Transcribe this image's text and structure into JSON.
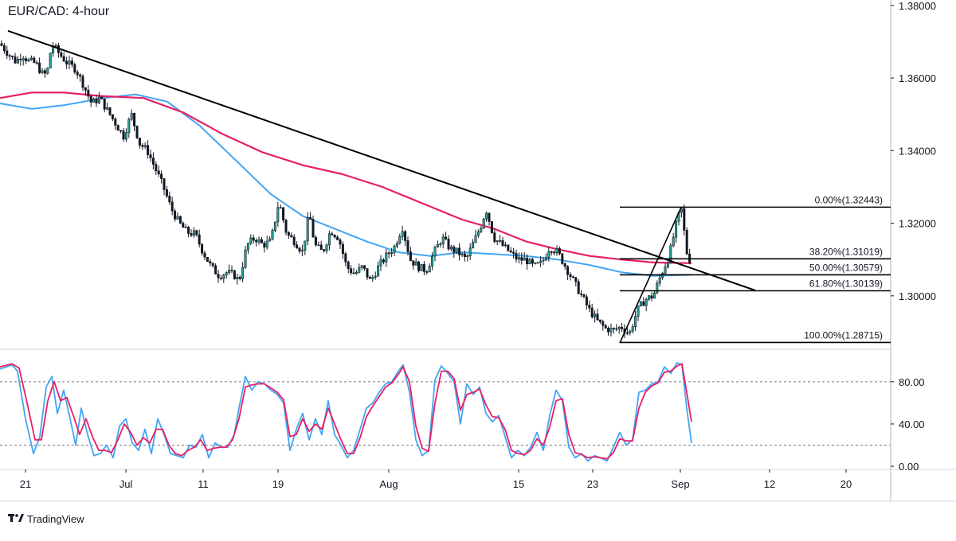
{
  "header": {
    "title": "EUR/CAD: 4-hour"
  },
  "footer": {
    "brand": "TradingView",
    "logo_icon": "tradingview-logo-icon"
  },
  "colors": {
    "candle_up": "#26a69a",
    "candle_down": "#131722",
    "ma_fast": "#42a5f5",
    "ma_slow": "#e91e63",
    "stoch_k": "#42a5f5",
    "stoch_d": "#e91e63",
    "trendline": "#000000",
    "grid": "#e0e3eb",
    "axis_text": "#131722"
  },
  "chart_data": [
    {
      "type": "candlestick",
      "title": "EUR/CAD: 4-hour",
      "ylim": [
        1.2855,
        1.3815
      ],
      "y_ticks": [
        "1.38000",
        "1.36000",
        "1.34000",
        "1.32000",
        "1.30000"
      ],
      "x_tick_labels": [
        "21",
        "Jul",
        "11",
        "19",
        "Aug",
        "15",
        "23",
        "Sep",
        "12",
        "20"
      ],
      "price_path": [
        [
          0,
          1.3695
        ],
        [
          10,
          1.3668
        ],
        [
          20,
          1.3645
        ],
        [
          28,
          1.3665
        ],
        [
          35,
          1.3648
        ],
        [
          45,
          1.364
        ],
        [
          55,
          1.3605
        ],
        [
          60,
          1.3625
        ],
        [
          65,
          1.3695
        ],
        [
          75,
          1.3665
        ],
        [
          85,
          1.364
        ],
        [
          95,
          1.3625
        ],
        [
          105,
          1.358
        ],
        [
          115,
          1.353
        ],
        [
          125,
          1.3545
        ],
        [
          135,
          1.351
        ],
        [
          145,
          1.3475
        ],
        [
          155,
          1.344
        ],
        [
          165,
          1.35
        ],
        [
          175,
          1.342
        ],
        [
          185,
          1.34
        ],
        [
          195,
          1.335
        ],
        [
          205,
          1.33
        ],
        [
          215,
          1.324
        ],
        [
          225,
          1.32
        ],
        [
          235,
          1.3175
        ],
        [
          245,
          1.317
        ],
        [
          255,
          1.312
        ],
        [
          265,
          1.308
        ],
        [
          275,
          1.3055
        ],
        [
          285,
          1.3065
        ],
        [
          295,
          1.3055
        ],
        [
          300,
          1.304
        ],
        [
          310,
          1.314
        ],
        [
          320,
          1.316
        ],
        [
          330,
          1.314
        ],
        [
          340,
          1.315
        ],
        [
          350,
          1.326
        ],
        [
          360,
          1.317
        ],
        [
          370,
          1.315
        ],
        [
          380,
          1.312
        ],
        [
          388,
          1.323
        ],
        [
          395,
          1.314
        ],
        [
          405,
          1.312
        ],
        [
          415,
          1.318
        ],
        [
          425,
          1.316
        ],
        [
          435,
          1.308
        ],
        [
          445,
          1.306
        ],
        [
          455,
          1.308
        ],
        [
          465,
          1.304
        ],
        [
          475,
          1.308
        ],
        [
          485,
          1.311
        ],
        [
          495,
          1.3135
        ],
        [
          505,
          1.319
        ],
        [
          515,
          1.31
        ],
        [
          525,
          1.308
        ],
        [
          535,
          1.307
        ],
        [
          545,
          1.312
        ],
        [
          555,
          1.316
        ],
        [
          565,
          1.313
        ],
        [
          575,
          1.312
        ],
        [
          585,
          1.31
        ],
        [
          595,
          1.315
        ],
        [
          605,
          1.32
        ],
        [
          610,
          1.324
        ],
        [
          620,
          1.316
        ],
        [
          630,
          1.314
        ],
        [
          640,
          1.312
        ],
        [
          650,
          1.31
        ],
        [
          660,
          1.31
        ],
        [
          670,
          1.308
        ],
        [
          680,
          1.309
        ],
        [
          690,
          1.3135
        ],
        [
          700,
          1.312
        ],
        [
          710,
          1.308
        ],
        [
          720,
          1.304
        ],
        [
          730,
          1.3
        ],
        [
          740,
          1.296
        ],
        [
          750,
          1.293
        ],
        [
          760,
          1.291
        ],
        [
          770,
          1.2905
        ],
        [
          780,
          1.2915
        ],
        [
          790,
          1.2895
        ],
        [
          800,
          1.296
        ],
        [
          810,
          1.299
        ],
        [
          820,
          1.3
        ],
        [
          830,
          1.306
        ],
        [
          840,
          1.311
        ],
        [
          848,
          1.319
        ],
        [
          855,
          1.3244
        ],
        [
          862,
          1.312
        ],
        [
          868,
          1.3085
        ]
      ],
      "ma_slow_path": [
        [
          0,
          1.3545
        ],
        [
          40,
          1.356
        ],
        [
          80,
          1.356
        ],
        [
          130,
          1.355
        ],
        [
          180,
          1.3545
        ],
        [
          230,
          1.3505
        ],
        [
          280,
          1.3445
        ],
        [
          330,
          1.3395
        ],
        [
          380,
          1.336
        ],
        [
          430,
          1.3335
        ],
        [
          480,
          1.33
        ],
        [
          530,
          1.3255
        ],
        [
          580,
          1.321
        ],
        [
          620,
          1.3185
        ],
        [
          660,
          1.315
        ],
        [
          700,
          1.3128
        ],
        [
          740,
          1.311
        ],
        [
          780,
          1.31
        ],
        [
          820,
          1.3092
        ],
        [
          868,
          1.309
        ]
      ],
      "ma_fast_path": [
        [
          0,
          1.353
        ],
        [
          40,
          1.3515
        ],
        [
          80,
          1.3525
        ],
        [
          130,
          1.3545
        ],
        [
          170,
          1.3555
        ],
        [
          210,
          1.3535
        ],
        [
          250,
          1.347
        ],
        [
          300,
          1.3365
        ],
        [
          340,
          1.328
        ],
        [
          380,
          1.322
        ],
        [
          420,
          1.3185
        ],
        [
          460,
          1.315
        ],
        [
          500,
          1.312
        ],
        [
          540,
          1.311
        ],
        [
          580,
          1.312
        ],
        [
          620,
          1.3115
        ],
        [
          660,
          1.311
        ],
        [
          700,
          1.31
        ],
        [
          740,
          1.3085
        ],
        [
          780,
          1.3065
        ],
        [
          820,
          1.3055
        ],
        [
          868,
          1.3058
        ]
      ],
      "trendline": {
        "from": [
          10,
          1.373
        ],
        "to": [
          948,
          1.3015
        ]
      },
      "impulse_line": {
        "from": [
          778,
          1.287
        ],
        "to": [
          855,
          1.3244
        ]
      },
      "fibonacci": {
        "x_range": [
          778,
          1118
        ],
        "levels": [
          {
            "label": "0.00%(1.32443)",
            "value": 1.32443
          },
          {
            "label": "38.20%(1.31019)",
            "value": 1.31019
          },
          {
            "label": "50.00%(1.30579)",
            "value": 1.30579
          },
          {
            "label": "61.80%(1.30139)",
            "value": 1.30139
          },
          {
            "label": "100.00%(1.28715)",
            "value": 1.28715
          }
        ]
      }
    },
    {
      "type": "line",
      "name": "stochastic",
      "ylim": [
        -3,
        110
      ],
      "y_ticks": [
        "80.00",
        "40.00",
        "0.00"
      ],
      "levels": [
        80,
        20
      ],
      "k_path": [
        [
          0,
          92
        ],
        [
          15,
          96
        ],
        [
          22,
          90
        ],
        [
          32,
          45
        ],
        [
          42,
          12
        ],
        [
          50,
          28
        ],
        [
          58,
          75
        ],
        [
          65,
          85
        ],
        [
          72,
          50
        ],
        [
          80,
          72
        ],
        [
          88,
          45
        ],
        [
          95,
          20
        ],
        [
          102,
          55
        ],
        [
          110,
          30
        ],
        [
          118,
          10
        ],
        [
          126,
          12
        ],
        [
          134,
          20
        ],
        [
          142,
          8
        ],
        [
          150,
          38
        ],
        [
          158,
          45
        ],
        [
          166,
          22
        ],
        [
          174,
          15
        ],
        [
          182,
          35
        ],
        [
          190,
          12
        ],
        [
          198,
          45
        ],
        [
          206,
          30
        ],
        [
          214,
          12
        ],
        [
          222,
          10
        ],
        [
          230,
          8
        ],
        [
          238,
          20
        ],
        [
          246,
          18
        ],
        [
          254,
          30
        ],
        [
          262,
          8
        ],
        [
          270,
          22
        ],
        [
          278,
          18
        ],
        [
          286,
          18
        ],
        [
          294,
          30
        ],
        [
          300,
          55
        ],
        [
          308,
          85
        ],
        [
          316,
          72
        ],
        [
          324,
          80
        ],
        [
          332,
          78
        ],
        [
          340,
          72
        ],
        [
          348,
          68
        ],
        [
          356,
          60
        ],
        [
          364,
          15
        ],
        [
          372,
          35
        ],
        [
          380,
          50
        ],
        [
          388,
          25
        ],
        [
          396,
          45
        ],
        [
          404,
          30
        ],
        [
          412,
          62
        ],
        [
          420,
          30
        ],
        [
          428,
          20
        ],
        [
          436,
          8
        ],
        [
          444,
          15
        ],
        [
          452,
          35
        ],
        [
          460,
          55
        ],
        [
          468,
          60
        ],
        [
          476,
          70
        ],
        [
          484,
          78
        ],
        [
          492,
          80
        ],
        [
          500,
          90
        ],
        [
          506,
          96
        ],
        [
          514,
          70
        ],
        [
          522,
          25
        ],
        [
          530,
          10
        ],
        [
          538,
          15
        ],
        [
          546,
          82
        ],
        [
          554,
          95
        ],
        [
          562,
          88
        ],
        [
          570,
          80
        ],
        [
          578,
          40
        ],
        [
          586,
          78
        ],
        [
          594,
          68
        ],
        [
          602,
          75
        ],
        [
          610,
          50
        ],
        [
          618,
          42
        ],
        [
          626,
          48
        ],
        [
          634,
          28
        ],
        [
          642,
          8
        ],
        [
          650,
          15
        ],
        [
          658,
          10
        ],
        [
          666,
          18
        ],
        [
          674,
          32
        ],
        [
          682,
          15
        ],
        [
          690,
          48
        ],
        [
          698,
          72
        ],
        [
          706,
          62
        ],
        [
          714,
          18
        ],
        [
          722,
          8
        ],
        [
          730,
          12
        ],
        [
          738,
          5
        ],
        [
          746,
          10
        ],
        [
          754,
          8
        ],
        [
          762,
          5
        ],
        [
          770,
          18
        ],
        [
          778,
          32
        ],
        [
          786,
          20
        ],
        [
          794,
          25
        ],
        [
          802,
          70
        ],
        [
          810,
          72
        ],
        [
          818,
          78
        ],
        [
          826,
          80
        ],
        [
          834,
          94
        ],
        [
          842,
          88
        ],
        [
          850,
          98
        ],
        [
          856,
          96
        ],
        [
          862,
          55
        ],
        [
          868,
          22
        ]
      ],
      "d_path": [
        [
          0,
          94
        ],
        [
          15,
          97
        ],
        [
          24,
          93
        ],
        [
          34,
          60
        ],
        [
          44,
          25
        ],
        [
          52,
          25
        ],
        [
          60,
          62
        ],
        [
          68,
          80
        ],
        [
          76,
          62
        ],
        [
          84,
          65
        ],
        [
          92,
          48
        ],
        [
          100,
          30
        ],
        [
          108,
          45
        ],
        [
          116,
          28
        ],
        [
          124,
          15
        ],
        [
          132,
          15
        ],
        [
          140,
          13
        ],
        [
          148,
          25
        ],
        [
          156,
          40
        ],
        [
          164,
          32
        ],
        [
          172,
          20
        ],
        [
          180,
          27
        ],
        [
          188,
          22
        ],
        [
          196,
          35
        ],
        [
          204,
          35
        ],
        [
          212,
          20
        ],
        [
          220,
          12
        ],
        [
          228,
          10
        ],
        [
          236,
          15
        ],
        [
          244,
          18
        ],
        [
          252,
          25
        ],
        [
          260,
          15
        ],
        [
          268,
          17
        ],
        [
          276,
          18
        ],
        [
          284,
          18
        ],
        [
          292,
          25
        ],
        [
          300,
          45
        ],
        [
          308,
          75
        ],
        [
          316,
          77
        ],
        [
          324,
          78
        ],
        [
          332,
          78
        ],
        [
          340,
          74
        ],
        [
          348,
          70
        ],
        [
          356,
          63
        ],
        [
          364,
          28
        ],
        [
          372,
          30
        ],
        [
          380,
          45
        ],
        [
          388,
          33
        ],
        [
          396,
          40
        ],
        [
          404,
          35
        ],
        [
          412,
          55
        ],
        [
          420,
          40
        ],
        [
          428,
          25
        ],
        [
          436,
          12
        ],
        [
          444,
          12
        ],
        [
          452,
          27
        ],
        [
          460,
          47
        ],
        [
          468,
          57
        ],
        [
          476,
          66
        ],
        [
          484,
          75
        ],
        [
          492,
          79
        ],
        [
          500,
          87
        ],
        [
          506,
          94
        ],
        [
          514,
          80
        ],
        [
          522,
          38
        ],
        [
          530,
          17
        ],
        [
          538,
          14
        ],
        [
          546,
          60
        ],
        [
          554,
          90
        ],
        [
          562,
          90
        ],
        [
          570,
          83
        ],
        [
          578,
          53
        ],
        [
          586,
          68
        ],
        [
          594,
          70
        ],
        [
          602,
          73
        ],
        [
          610,
          58
        ],
        [
          618,
          47
        ],
        [
          626,
          46
        ],
        [
          634,
          35
        ],
        [
          642,
          15
        ],
        [
          650,
          12
        ],
        [
          658,
          11
        ],
        [
          666,
          15
        ],
        [
          674,
          26
        ],
        [
          682,
          20
        ],
        [
          690,
          37
        ],
        [
          698,
          62
        ],
        [
          706,
          64
        ],
        [
          714,
          30
        ],
        [
          722,
          13
        ],
        [
          730,
          11
        ],
        [
          738,
          8
        ],
        [
          746,
          9
        ],
        [
          754,
          8
        ],
        [
          762,
          7
        ],
        [
          770,
          13
        ],
        [
          778,
          26
        ],
        [
          786,
          24
        ],
        [
          794,
          24
        ],
        [
          802,
          55
        ],
        [
          810,
          70
        ],
        [
          818,
          76
        ],
        [
          826,
          79
        ],
        [
          834,
          89
        ],
        [
          842,
          90
        ],
        [
          850,
          95
        ],
        [
          856,
          97
        ],
        [
          862,
          70
        ],
        [
          868,
          42
        ]
      ]
    }
  ]
}
